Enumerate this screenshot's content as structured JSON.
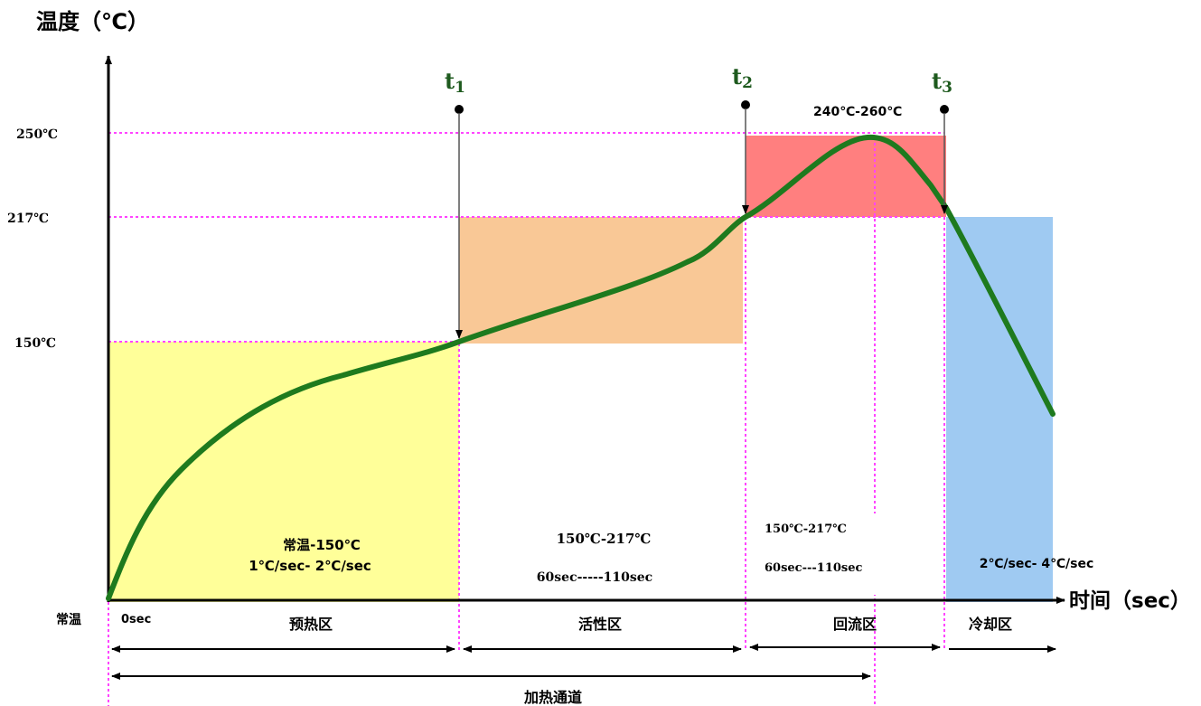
{
  "axes": {
    "y_title": "温度（℃）",
    "x_title": "时间（sec）",
    "origin_label": "常温",
    "zero_time": "0sec"
  },
  "temperature_labels": {
    "t250": "250℃",
    "t217": "217℃",
    "t150": "150℃"
  },
  "time_markers": [
    {
      "id": "t1",
      "main": "t",
      "sub": "1"
    },
    {
      "id": "t2",
      "main": "t",
      "sub": "2"
    },
    {
      "id": "t3",
      "main": "t",
      "sub": "3"
    }
  ],
  "zones": {
    "preheat": {
      "range": "常温-150℃",
      "rate": "1℃/sec- 2℃/sec",
      "name": "预热区"
    },
    "soak": {
      "range": "150℃-217℃",
      "time": "60sec-----110sec",
      "name": "活性区"
    },
    "reflow": {
      "peak": "240℃-260℃",
      "range": "150℃-217℃",
      "time": "60sec---110sec",
      "name": "回流区"
    },
    "cooling": {
      "rate": "2℃/sec- 4℃/sec",
      "name": "冷却区"
    }
  },
  "heating_channel": "加热通道",
  "colors": {
    "preheat_fill": "#ffff99",
    "soak_fill": "#f9c896",
    "reflow_fill": "#ff7f7f",
    "cooling_fill": "#9fcaf2",
    "curve": "#1e7a1e",
    "guide_dotted": "#ff44ff",
    "axis": "#000000"
  }
}
